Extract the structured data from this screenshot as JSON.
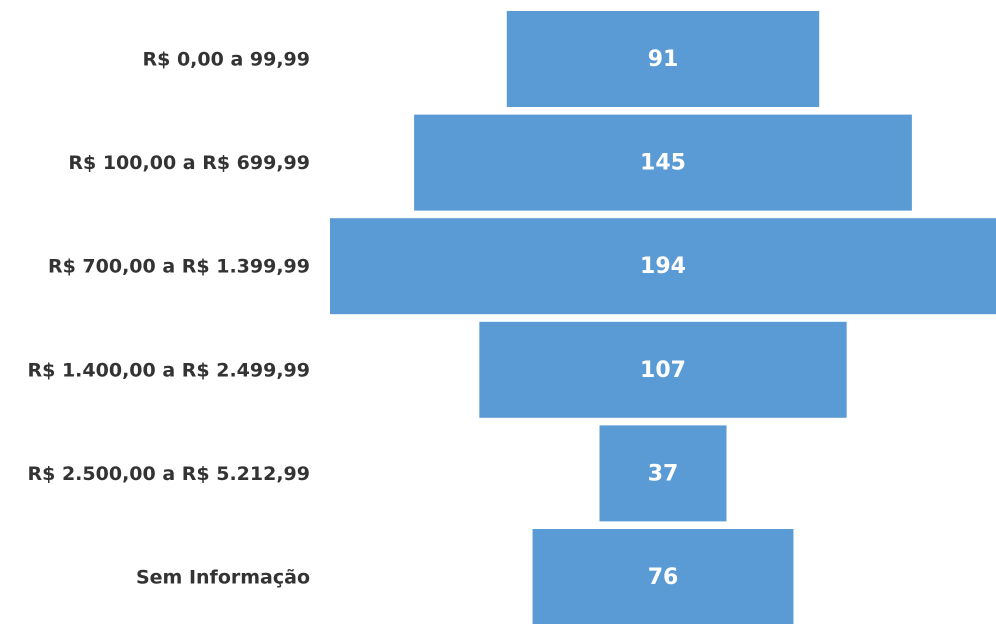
{
  "chart_data": {
    "type": "funnel",
    "categories": [
      "R$ 0,00 a 99,99",
      "R$ 100,00 a R$ 699,99",
      "R$ 700,00 a R$ 1.399,99",
      "R$ 1.400,00 a R$ 2.499,99",
      "R$ 2.500,00 a R$ 5.212,99",
      "Sem Informação"
    ],
    "values": [
      91,
      145,
      194,
      107,
      37,
      76
    ],
    "color": "#5b9bd5"
  }
}
